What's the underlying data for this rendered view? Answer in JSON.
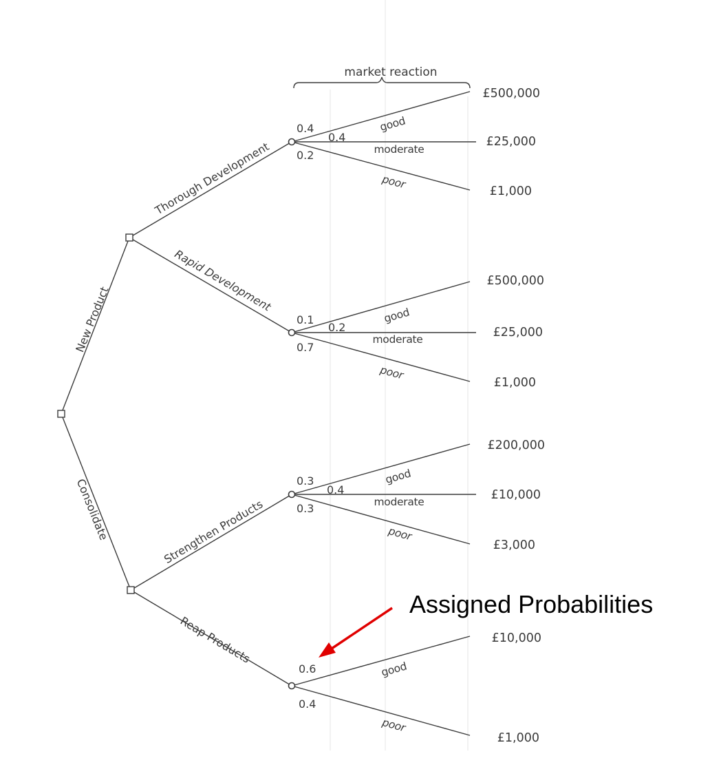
{
  "header": {
    "market_reaction": "market reaction"
  },
  "branches": {
    "new_product": "New Product",
    "consolidate": "Consolidate",
    "thorough_development": "Thorough Development",
    "rapid_development": "Rapid Development",
    "strengthen_products": "Strengthen Products",
    "reap_products": "Reap Products"
  },
  "outcomes": {
    "good": "good",
    "moderate": "moderate",
    "poor": "poor"
  },
  "chance_nodes": [
    {
      "probabilities": [
        "0.4",
        "0.4",
        "0.2"
      ],
      "payoffs": [
        "£500,000",
        "£25,000",
        "£1,000"
      ]
    },
    {
      "probabilities": [
        "0.1",
        "0.2",
        "0.7"
      ],
      "payoffs": [
        "£500,000",
        "£25,000",
        "£1,000"
      ]
    },
    {
      "probabilities": [
        "0.3",
        "0.4",
        "0.3"
      ],
      "payoffs": [
        "£200,000",
        "£10,000",
        "£3,000"
      ]
    },
    {
      "probabilities": [
        "0.6",
        "0.4"
      ],
      "payoffs": [
        "£10,000",
        "£1,000"
      ]
    }
  ],
  "annotation": {
    "text": "Assigned Probabilities",
    "arrow_color": "#e00000"
  }
}
